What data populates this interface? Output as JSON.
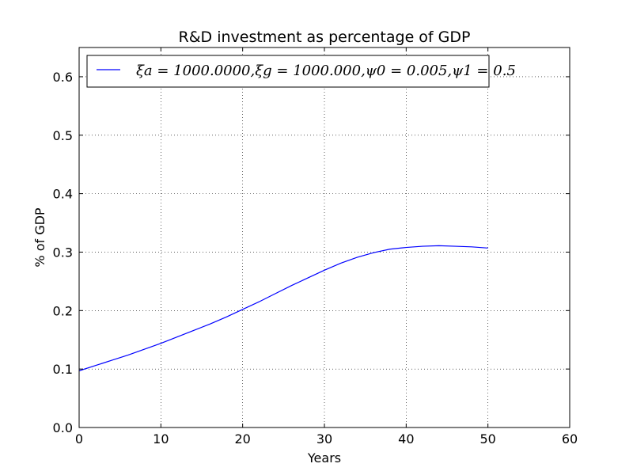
{
  "chart_data": {
    "type": "line",
    "title": "R&D investment as percentage of  GDP",
    "xlabel": "Years",
    "ylabel": "% of GDP",
    "xlim": [
      0,
      60
    ],
    "ylim": [
      0.0,
      0.65
    ],
    "xticks": [
      "0",
      "10",
      "20",
      "30",
      "40",
      "50",
      "60"
    ],
    "yticks": [
      "0.0",
      "0.1",
      "0.2",
      "0.3",
      "0.4",
      "0.5",
      "0.6"
    ],
    "grid": true,
    "legend_position": "top-left",
    "series": [
      {
        "name": "ξa = 1000.0000,ξg = 1000.000,ψ0 = 0.005,ψ1 = 0.5",
        "color": "#0000ff",
        "x": [
          0,
          2,
          4,
          6,
          8,
          10,
          12,
          14,
          16,
          18,
          20,
          22,
          24,
          26,
          28,
          30,
          32,
          34,
          36,
          38,
          40,
          42,
          44,
          46,
          48,
          50
        ],
        "y": [
          0.097,
          0.106,
          0.115,
          0.124,
          0.134,
          0.144,
          0.155,
          0.166,
          0.177,
          0.189,
          0.202,
          0.215,
          0.229,
          0.243,
          0.256,
          0.269,
          0.281,
          0.291,
          0.299,
          0.305,
          0.308,
          0.31,
          0.311,
          0.31,
          0.309,
          0.307
        ]
      }
    ]
  }
}
